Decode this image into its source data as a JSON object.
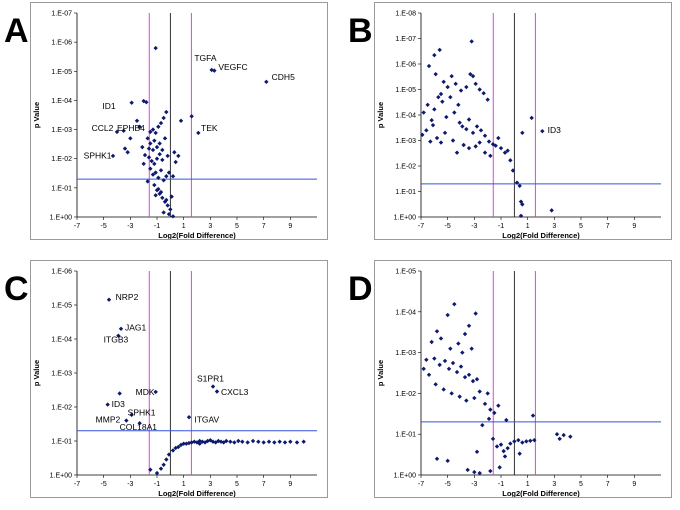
{
  "colors": {
    "point": "#0d1a6e",
    "magenta": "#e040e0",
    "blue": "#3355dd",
    "axis": "#000000",
    "frame": "#9a9a9a"
  },
  "chart_data": [
    {
      "letter": "A",
      "type": "scatter",
      "xlabel": "Log2(Fold Difference)",
      "ylabel": "p Value",
      "xlim": [
        -7,
        11
      ],
      "xticks": [
        "-7",
        "-5",
        "-3",
        "-1",
        "1",
        "3",
        "5",
        "7",
        "9"
      ],
      "yexp": [
        -7,
        0
      ],
      "ytick_labels": [
        "1.E-07",
        "1.E-06",
        "1.E-05",
        "1.E-04",
        "1.E-03",
        "1.E-02",
        "1.E-01",
        "1.E+00"
      ],
      "vlines_magenta": [
        -1.58,
        1.58
      ],
      "vline_black": 0,
      "hline_blue": 0.05,
      "points": [
        [
          -1.1,
          1.6e-06
        ],
        [
          3.1,
          9e-06
        ],
        [
          3.3,
          9.5e-06
        ],
        [
          7.2,
          2.3e-05
        ],
        [
          2.1,
          0.0013
        ],
        [
          1.6,
          0.00035
        ],
        [
          -2.9,
          0.00012
        ],
        [
          -4.0,
          0.0012
        ],
        [
          -3.5,
          0.0011
        ],
        [
          -3.0,
          0.002
        ],
        [
          -2.5,
          0.0005
        ],
        [
          -2.3,
          0.0008
        ],
        [
          -3.4,
          0.0045
        ],
        [
          -3.2,
          0.006
        ],
        [
          -4.3,
          0.008
        ],
        [
          -2.0,
          0.000105
        ],
        [
          -1.8,
          0.000115
        ],
        [
          -1.5,
          0.0012
        ],
        [
          -1.3,
          0.001
        ],
        [
          -1.1,
          0.0013
        ],
        [
          -0.9,
          0.0008
        ],
        [
          -0.7,
          0.0006
        ],
        [
          -0.5,
          0.0004
        ],
        [
          -0.3,
          0.00025
        ],
        [
          0.8,
          0.0005
        ],
        [
          -1.7,
          0.002
        ],
        [
          -1.5,
          0.003
        ],
        [
          -1.3,
          0.005
        ],
        [
          -1.0,
          0.004
        ],
        [
          -0.8,
          0.003
        ],
        [
          -0.6,
          0.005
        ],
        [
          -0.4,
          0.002
        ],
        [
          -1.6,
          0.009
        ],
        [
          -1.4,
          0.012
        ],
        [
          -1.2,
          0.015
        ],
        [
          -1.0,
          0.01
        ],
        [
          -0.8,
          0.007
        ],
        [
          -0.6,
          0.011
        ],
        [
          -0.2,
          0.008
        ],
        [
          0.3,
          0.006
        ],
        [
          0.6,
          0.008
        ],
        [
          -1.5,
          0.022
        ],
        [
          -1.3,
          0.035
        ],
        [
          -1.1,
          0.03
        ],
        [
          -0.9,
          0.045
        ],
        [
          -0.7,
          0.025
        ],
        [
          -0.5,
          0.055
        ],
        [
          -0.3,
          0.04
        ],
        [
          -0.1,
          0.03
        ],
        [
          0.2,
          0.04
        ],
        [
          -1.2,
          0.08
        ],
        [
          -1.0,
          0.12
        ],
        [
          -0.8,
          0.16
        ],
        [
          -0.6,
          0.22
        ],
        [
          -0.4,
          0.3
        ],
        [
          -0.2,
          0.4
        ],
        [
          0.0,
          0.55
        ],
        [
          -0.1,
          0.8
        ],
        [
          0.2,
          0.95
        ],
        [
          -0.5,
          0.7
        ],
        [
          -0.9,
          0.11
        ],
        [
          -1.1,
          0.18
        ],
        [
          -0.7,
          0.14
        ],
        [
          -0.3,
          0.26
        ],
        [
          0.1,
          0.2
        ],
        [
          -1.7,
          0.06
        ],
        [
          -2.1,
          0.004
        ],
        [
          -2.0,
          0.015
        ],
        [
          -1.9,
          0.0075
        ],
        [
          -1.6,
          0.0045
        ],
        [
          -1.2,
          0.0024
        ],
        [
          0.4,
          0.013
        ]
      ],
      "labels": [
        {
          "text": "TGFA",
          "x": 1.8,
          "ye": -5.35,
          "anchor": "start"
        },
        {
          "text": "VEGFC",
          "x": 3.6,
          "ye": -5.05,
          "anchor": "start"
        },
        {
          "text": "CDH5",
          "x": 7.6,
          "ye": -4.7,
          "anchor": "start"
        },
        {
          "text": "ID1",
          "x": -5.1,
          "ye": -3.7,
          "anchor": "start"
        },
        {
          "text": "CCL2",
          "x": -5.9,
          "ye": -2.95,
          "anchor": "start"
        },
        {
          "text": "EPHB4",
          "x": -4.0,
          "ye": -2.95,
          "anchor": "start"
        },
        {
          "text": "TEK",
          "x": 2.3,
          "ye": -2.95,
          "anchor": "start"
        },
        {
          "text": "SPHK1",
          "x": -6.5,
          "ye": -2.0,
          "anchor": "start"
        }
      ]
    },
    {
      "letter": "B",
      "type": "scatter",
      "xlabel": "Log2(Fold Difference)",
      "ylabel": "p Value",
      "xlim": [
        -7,
        11
      ],
      "xticks": [
        "-7",
        "-5",
        "-3",
        "-1",
        "1",
        "3",
        "5",
        "7",
        "9"
      ],
      "yexp": [
        -8,
        0
      ],
      "ytick_labels": [
        "1.E-08",
        "1.E-07",
        "1.E-06",
        "1.E-05",
        "1.E-04",
        "1.E-03",
        "1.E-02",
        "1.E-01",
        "1.E+00"
      ],
      "vlines_magenta": [
        -1.58,
        1.58
      ],
      "vline_black": 0,
      "hline_blue": 0.05,
      "points": [
        [
          -5.6,
          2.8e-07
        ],
        [
          -6.0,
          4.5e-07
        ],
        [
          -3.2,
          1.3e-07
        ],
        [
          -6.4,
          1.2e-06
        ],
        [
          -5.9,
          2.5e-06
        ],
        [
          -5.3,
          5e-06
        ],
        [
          -5.0,
          8e-06
        ],
        [
          -4.7,
          3e-06
        ],
        [
          -4.4,
          6e-06
        ],
        [
          -4.0,
          1.1e-05
        ],
        [
          -3.6,
          8e-06
        ],
        [
          -3.3,
          2.5e-06
        ],
        [
          -3.1,
          3e-06
        ],
        [
          -2.9,
          6e-06
        ],
        [
          -2.6,
          1e-05
        ],
        [
          -2.3,
          1.4e-05
        ],
        [
          -2.0,
          2.5e-05
        ],
        [
          -6.8,
          8e-05
        ],
        [
          -6.5,
          4e-05
        ],
        [
          -6.2,
          0.00016
        ],
        [
          -6.0,
          6e-05
        ],
        [
          -5.7,
          2e-05
        ],
        [
          -5.4,
          3e-05
        ],
        [
          -5.1,
          0.00012
        ],
        [
          -4.8,
          2e-05
        ],
        [
          -4.5,
          8e-05
        ],
        [
          -4.2,
          4e-05
        ],
        [
          -3.9,
          0.00028
        ],
        [
          -3.6,
          0.00036
        ],
        [
          -3.4,
          0.00015
        ],
        [
          -3.1,
          0.0005
        ],
        [
          -2.8,
          0.00028
        ],
        [
          -2.5,
          0.0004
        ],
        [
          -2.2,
          0.00065
        ],
        [
          -1.9,
          0.0011
        ],
        [
          -1.6,
          0.0014
        ],
        [
          -1.4,
          0.0016
        ],
        [
          -1.2,
          0.0008
        ],
        [
          -6.9,
          0.0006
        ],
        [
          -6.6,
          0.0004
        ],
        [
          -6.3,
          0.0011
        ],
        [
          -6.1,
          0.00025
        ],
        [
          -5.8,
          0.0008
        ],
        [
          -5.5,
          0.0012
        ],
        [
          -5.2,
          0.0005
        ],
        [
          -4.6,
          0.001
        ],
        [
          -4.3,
          0.003
        ],
        [
          -3.8,
          0.0015
        ],
        [
          -3.4,
          0.002
        ],
        [
          -2.9,
          0.0017
        ],
        [
          -2.6,
          0.0012
        ],
        [
          -2.2,
          0.003
        ],
        [
          -1.0,
          0.002
        ],
        [
          -0.7,
          0.003
        ],
        [
          -0.5,
          0.0025
        ],
        [
          -0.3,
          0.006
        ],
        [
          -0.1,
          0.015
        ],
        [
          0.2,
          0.045
        ],
        [
          0.4,
          0.06
        ],
        [
          0.5,
          0.25
        ],
        [
          0.6,
          0.32
        ],
        [
          0.5,
          0.9
        ],
        [
          1.3,
          0.00013
        ],
        [
          2.1,
          0.00043
        ],
        [
          2.8,
          0.55
        ],
        [
          0.6,
          0.0005
        ],
        [
          -1.8,
          0.004
        ],
        [
          -4.1,
          0.0002
        ],
        [
          -5.5,
          1.5e-05
        ]
      ],
      "labels": [
        {
          "text": "ID3",
          "x": 2.5,
          "ye": -3.3,
          "anchor": "start"
        }
      ]
    },
    {
      "letter": "C",
      "type": "scatter",
      "xlabel": "Log2(Fold Difference)",
      "ylabel": "p Value",
      "xlim": [
        -7,
        11
      ],
      "xticks": [
        "-7",
        "-5",
        "-3",
        "-1",
        "1",
        "3",
        "5",
        "7",
        "9"
      ],
      "yexp": [
        -6,
        0
      ],
      "ytick_labels": [
        "1.E-06",
        "1.E-05",
        "1.E-04",
        "1.E-03",
        "1.E-02",
        "1.E-01",
        "1.E+00"
      ],
      "vlines_magenta": [
        -1.58,
        1.58
      ],
      "vline_black": 0,
      "hline_blue": 0.05,
      "points": [
        [
          -4.6,
          7e-06
        ],
        [
          -3.7,
          5e-05
        ],
        [
          -3.9,
          8e-05
        ],
        [
          -4.7,
          0.0085
        ],
        [
          -3.8,
          0.004
        ],
        [
          -2.9,
          0.017
        ],
        [
          -1.1,
          0.0036
        ],
        [
          -3.3,
          0.025
        ],
        [
          -2.3,
          0.03
        ],
        [
          1.4,
          0.02
        ],
        [
          3.2,
          0.0025
        ],
        [
          3.5,
          0.0035
        ],
        [
          -1.5,
          0.7
        ],
        [
          -1.0,
          0.88
        ],
        [
          -0.7,
          0.65
        ],
        [
          -0.5,
          0.5
        ],
        [
          -0.3,
          0.35
        ],
        [
          -0.1,
          0.25
        ],
        [
          0.2,
          0.19
        ],
        [
          0.4,
          0.16
        ],
        [
          0.6,
          0.15
        ],
        [
          0.8,
          0.13
        ],
        [
          1.0,
          0.12
        ],
        [
          1.2,
          0.12
        ],
        [
          1.4,
          0.115
        ],
        [
          1.6,
          0.11
        ],
        [
          1.8,
          0.105
        ],
        [
          2.0,
          0.11
        ],
        [
          2.2,
          0.1
        ],
        [
          2.4,
          0.105
        ],
        [
          2.6,
          0.11
        ],
        [
          2.8,
          0.1
        ],
        [
          3.0,
          0.095
        ],
        [
          3.2,
          0.105
        ],
        [
          3.4,
          0.11
        ],
        [
          3.6,
          0.1
        ],
        [
          3.8,
          0.105
        ],
        [
          4.0,
          0.11
        ],
        [
          4.2,
          0.1
        ],
        [
          4.5,
          0.105
        ],
        [
          4.8,
          0.11
        ],
        [
          5.1,
          0.1
        ],
        [
          5.4,
          0.105
        ],
        [
          5.8,
          0.11
        ],
        [
          6.2,
          0.1
        ],
        [
          6.6,
          0.105
        ],
        [
          7.0,
          0.11
        ],
        [
          7.4,
          0.105
        ],
        [
          7.8,
          0.11
        ],
        [
          8.2,
          0.105
        ],
        [
          8.6,
          0.11
        ],
        [
          9.0,
          0.105
        ],
        [
          9.5,
          0.11
        ],
        [
          10.0,
          0.105
        ],
        [
          2.2,
          0.12
        ]
      ],
      "labels": [
        {
          "text": "NRP2",
          "x": -4.1,
          "ye": -5.15,
          "anchor": "start"
        },
        {
          "text": "JAG1",
          "x": -3.4,
          "ye": -4.25,
          "anchor": "start"
        },
        {
          "text": "ITGB3",
          "x": -5.0,
          "ye": -3.9,
          "anchor": "start"
        },
        {
          "text": "S1PR1",
          "x": 2.0,
          "ye": -2.75,
          "anchor": "start"
        },
        {
          "text": "CXCL3",
          "x": 3.8,
          "ye": -2.35,
          "anchor": "start"
        },
        {
          "text": "MDK",
          "x": -2.6,
          "ye": -2.35,
          "anchor": "start"
        },
        {
          "text": "ID3",
          "x": -4.4,
          "ye": -2.0,
          "anchor": "start"
        },
        {
          "text": "SPHK1",
          "x": -3.2,
          "ye": -1.75,
          "anchor": "start"
        },
        {
          "text": "MMP2",
          "x": -5.6,
          "ye": -1.55,
          "anchor": "start"
        },
        {
          "text": "ITGAV",
          "x": 1.8,
          "ye": -1.55,
          "anchor": "start"
        },
        {
          "text": "COL18A1",
          "x": -3.8,
          "ye": -1.33,
          "anchor": "start"
        }
      ]
    },
    {
      "letter": "D",
      "type": "scatter",
      "xlabel": "Log2(Fold Difference)",
      "ylabel": "p Value",
      "xlim": [
        -7,
        11
      ],
      "xticks": [
        "-7",
        "-5",
        "-3",
        "-1",
        "1",
        "3",
        "5",
        "7",
        "9"
      ],
      "yexp": [
        -5,
        0
      ],
      "ytick_labels": [
        "1.E-05",
        "1.E-04",
        "1.E-03",
        "1.E-02",
        "1.E-01",
        "1.E+00"
      ],
      "vlines_magenta": [
        -1.58,
        1.58
      ],
      "vline_black": 0,
      "hline_blue": 0.05,
      "points": [
        [
          -4.5,
          6.5e-05
        ],
        [
          -5.0,
          0.00012
        ],
        [
          -2.9,
          0.00011
        ],
        [
          -5.8,
          0.0003
        ],
        [
          -3.4,
          0.00022
        ],
        [
          -3.7,
          0.00035
        ],
        [
          -6.2,
          0.00055
        ],
        [
          -5.5,
          0.00045
        ],
        [
          -4.8,
          0.0008
        ],
        [
          -4.2,
          0.0006
        ],
        [
          -3.9,
          0.001
        ],
        [
          -3.2,
          0.0008
        ],
        [
          -6.6,
          0.0015
        ],
        [
          -6.0,
          0.0014
        ],
        [
          -5.6,
          0.002
        ],
        [
          -5.2,
          0.0016
        ],
        [
          -4.9,
          0.0025
        ],
        [
          -4.6,
          0.0018
        ],
        [
          -4.3,
          0.003
        ],
        [
          -4.0,
          0.0022
        ],
        [
          -3.7,
          0.004
        ],
        [
          -3.4,
          0.0035
        ],
        [
          -3.1,
          0.005
        ],
        [
          -2.8,
          0.0045
        ],
        [
          -6.8,
          0.0025
        ],
        [
          -6.4,
          0.0035
        ],
        [
          -5.9,
          0.006
        ],
        [
          -5.3,
          0.008
        ],
        [
          -4.7,
          0.01
        ],
        [
          -4.1,
          0.012
        ],
        [
          -3.6,
          0.015
        ],
        [
          -3.0,
          0.013
        ],
        [
          -2.6,
          0.009
        ],
        [
          -2.2,
          0.018
        ],
        [
          -1.8,
          0.025
        ],
        [
          -1.5,
          0.03
        ],
        [
          -1.2,
          0.02
        ],
        [
          -0.6,
          0.045
        ],
        [
          -2.4,
          0.06
        ],
        [
          -1.9,
          0.042
        ],
        [
          -1.6,
          0.13
        ],
        [
          -1.3,
          0.2
        ],
        [
          -1.0,
          0.18
        ],
        [
          -0.8,
          0.26
        ],
        [
          -0.5,
          0.22
        ],
        [
          -0.3,
          0.17
        ],
        [
          0.0,
          0.15
        ],
        [
          0.3,
          0.14
        ],
        [
          0.6,
          0.16
        ],
        [
          0.9,
          0.15
        ],
        [
          1.2,
          0.145
        ],
        [
          1.5,
          0.14
        ],
        [
          3.2,
          0.1
        ],
        [
          3.4,
          0.13
        ],
        [
          3.7,
          0.105
        ],
        [
          4.2,
          0.115
        ],
        [
          1.4,
          0.035
        ],
        [
          -2.8,
          0.27
        ],
        [
          -3.5,
          0.75
        ],
        [
          -3.0,
          0.85
        ],
        [
          -2.6,
          0.9
        ],
        [
          -1.8,
          0.8
        ],
        [
          -1.1,
          0.65
        ],
        [
          -5.8,
          0.4
        ],
        [
          -5.0,
          0.45
        ],
        [
          -0.7,
          0.35
        ],
        [
          0.4,
          0.3
        ],
        [
          -2.0,
          0.01
        ]
      ],
      "labels": []
    }
  ]
}
